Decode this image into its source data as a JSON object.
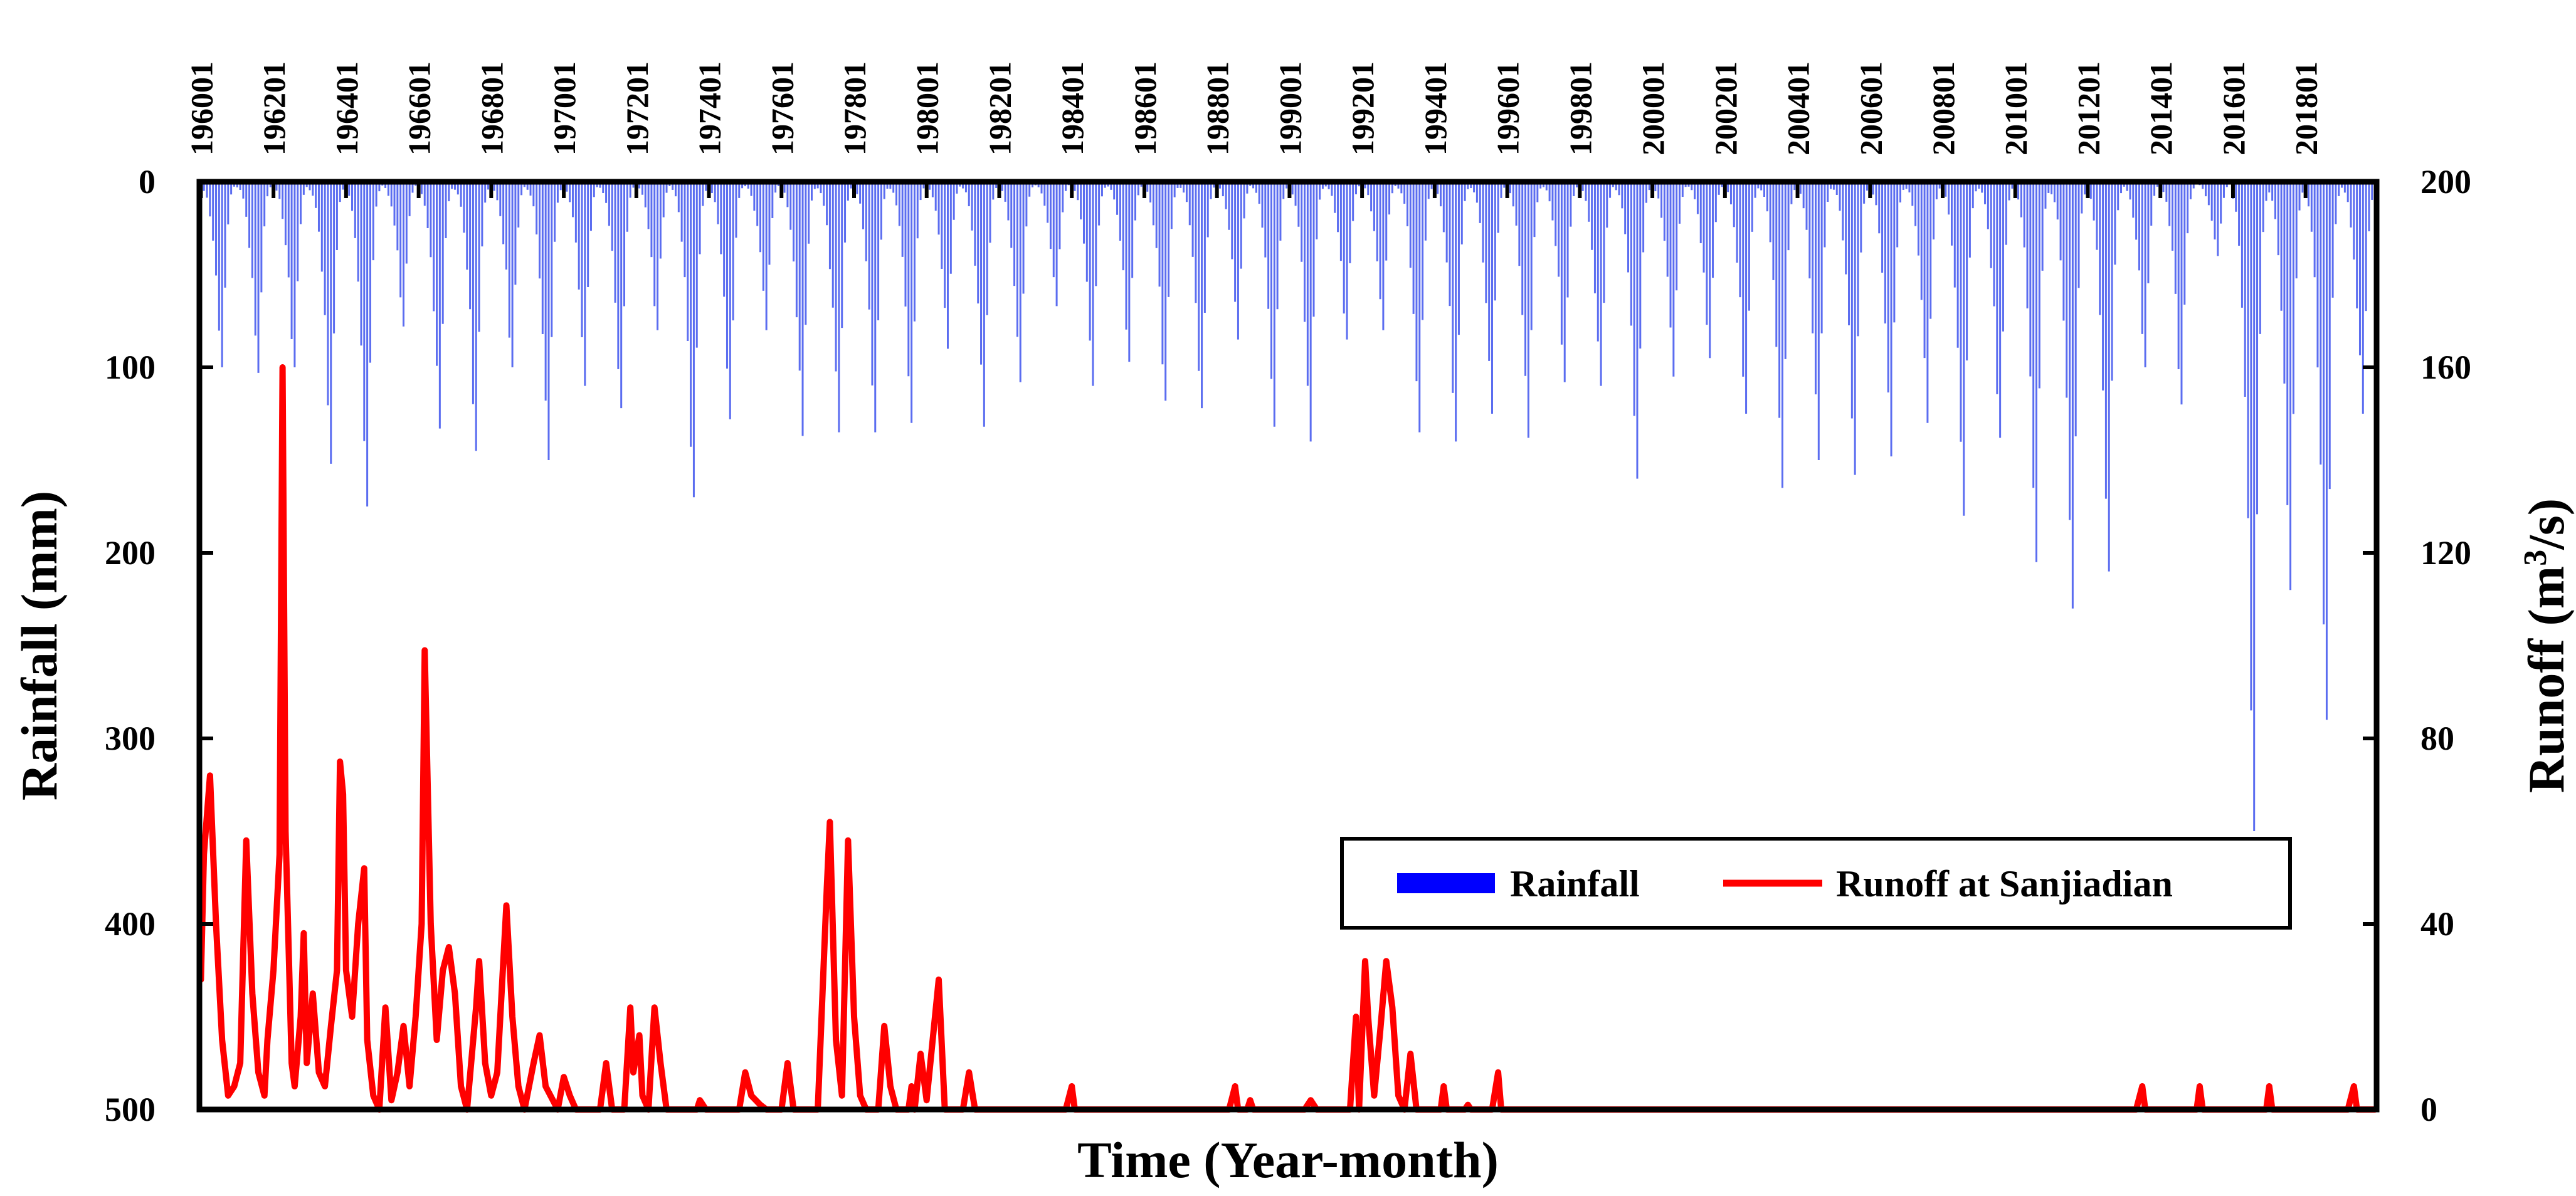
{
  "chart_data": {
    "type": "bar+line",
    "title": "",
    "xlabel": "Time (Year-month)",
    "ylabel_left": "Rainfall (mm)",
    "ylabel_right": "Runoff (m3/s)",
    "ylabel_right_parts": [
      "Runoff (m",
      "3",
      "/s)"
    ],
    "left_axis": {
      "range": [
        0,
        500
      ],
      "inverted": true,
      "ticks": [
        0,
        100,
        200,
        300,
        400,
        500
      ]
    },
    "right_axis": {
      "range": [
        0,
        200
      ],
      "ticks": [
        0,
        40,
        80,
        120,
        160,
        200
      ]
    },
    "x_tick_labels": [
      "196001",
      "196201",
      "196401",
      "196601",
      "196801",
      "197001",
      "197201",
      "197401",
      "197601",
      "197801",
      "198001",
      "198201",
      "198401",
      "198601",
      "198801",
      "199001",
      "199201",
      "199401",
      "199601",
      "199801",
      "200001",
      "200201",
      "200401",
      "200601",
      "200801",
      "201001",
      "201201",
      "201401",
      "201601",
      "201801"
    ],
    "time_range": {
      "start": "1960-01",
      "end": "2019-12",
      "months": 720
    },
    "series": [
      {
        "name": "Rainfall",
        "type": "bar",
        "color": "#5b6df0",
        "legend_color": "#0000ff",
        "axis": "left",
        "annual_peaks": [
          {
            "year": 1960,
            "value": 100
          },
          {
            "year": 1961,
            "value": 103
          },
          {
            "year": 1962,
            "value": 100
          },
          {
            "year": 1963,
            "value": 152
          },
          {
            "year": 1964,
            "value": 175
          },
          {
            "year": 1965,
            "value": 78
          },
          {
            "year": 1966,
            "value": 133
          },
          {
            "year": 1967,
            "value": 145
          },
          {
            "year": 1968,
            "value": 100
          },
          {
            "year": 1969,
            "value": 150
          },
          {
            "year": 1970,
            "value": 110
          },
          {
            "year": 1971,
            "value": 122
          },
          {
            "year": 1972,
            "value": 80
          },
          {
            "year": 1973,
            "value": 170
          },
          {
            "year": 1974,
            "value": 128
          },
          {
            "year": 1975,
            "value": 80
          },
          {
            "year": 1976,
            "value": 137
          },
          {
            "year": 1977,
            "value": 135
          },
          {
            "year": 1978,
            "value": 135
          },
          {
            "year": 1979,
            "value": 130
          },
          {
            "year": 1980,
            "value": 90
          },
          {
            "year": 1981,
            "value": 132
          },
          {
            "year": 1982,
            "value": 108
          },
          {
            "year": 1983,
            "value": 67
          },
          {
            "year": 1984,
            "value": 110
          },
          {
            "year": 1985,
            "value": 97
          },
          {
            "year": 1986,
            "value": 118
          },
          {
            "year": 1987,
            "value": 122
          },
          {
            "year": 1988,
            "value": 85
          },
          {
            "year": 1989,
            "value": 132
          },
          {
            "year": 1990,
            "value": 140
          },
          {
            "year": 1991,
            "value": 85
          },
          {
            "year": 1992,
            "value": 80
          },
          {
            "year": 1993,
            "value": 135
          },
          {
            "year": 1994,
            "value": 140
          },
          {
            "year": 1995,
            "value": 125
          },
          {
            "year": 1996,
            "value": 138
          },
          {
            "year": 1997,
            "value": 108
          },
          {
            "year": 1998,
            "value": 110
          },
          {
            "year": 1999,
            "value": 160
          },
          {
            "year": 2000,
            "value": 105
          },
          {
            "year": 2001,
            "value": 95
          },
          {
            "year": 2002,
            "value": 125
          },
          {
            "year": 2003,
            "value": 165
          },
          {
            "year": 2004,
            "value": 150
          },
          {
            "year": 2005,
            "value": 158
          },
          {
            "year": 2006,
            "value": 148
          },
          {
            "year": 2007,
            "value": 130
          },
          {
            "year": 2008,
            "value": 180
          },
          {
            "year": 2009,
            "value": 138
          },
          {
            "year": 2010,
            "value": 205
          },
          {
            "year": 2011,
            "value": 230
          },
          {
            "year": 2012,
            "value": 210
          },
          {
            "year": 2013,
            "value": 100
          },
          {
            "year": 2014,
            "value": 120
          },
          {
            "year": 2015,
            "value": 40
          },
          {
            "year": 2016,
            "value": 350
          },
          {
            "year": 2017,
            "value": 220
          },
          {
            "year": 2018,
            "value": 290
          },
          {
            "year": 2019,
            "value": 125
          }
        ]
      },
      {
        "name": "Runoff at Sanjiadian",
        "type": "line",
        "color": "#ff0000",
        "axis": "right",
        "points": [
          {
            "t": 0,
            "v": 28
          },
          {
            "t": 1,
            "v": 55
          },
          {
            "t": 3,
            "v": 72
          },
          {
            "t": 5,
            "v": 40
          },
          {
            "t": 7,
            "v": 15
          },
          {
            "t": 9,
            "v": 3
          },
          {
            "t": 11,
            "v": 5
          },
          {
            "t": 13,
            "v": 10
          },
          {
            "t": 15,
            "v": 58
          },
          {
            "t": 17,
            "v": 25
          },
          {
            "t": 19,
            "v": 8
          },
          {
            "t": 21,
            "v": 3
          },
          {
            "t": 22,
            "v": 15
          },
          {
            "t": 24,
            "v": 30
          },
          {
            "t": 26,
            "v": 55
          },
          {
            "t": 27,
            "v": 160
          },
          {
            "t": 28,
            "v": 60
          },
          {
            "t": 30,
            "v": 10
          },
          {
            "t": 31,
            "v": 5
          },
          {
            "t": 33,
            "v": 20
          },
          {
            "t": 34,
            "v": 38
          },
          {
            "t": 35,
            "v": 10
          },
          {
            "t": 37,
            "v": 25
          },
          {
            "t": 39,
            "v": 8
          },
          {
            "t": 41,
            "v": 5
          },
          {
            "t": 43,
            "v": 18
          },
          {
            "t": 45,
            "v": 30
          },
          {
            "t": 46,
            "v": 75
          },
          {
            "t": 47,
            "v": 68
          },
          {
            "t": 48,
            "v": 30
          },
          {
            "t": 50,
            "v": 20
          },
          {
            "t": 52,
            "v": 40
          },
          {
            "t": 54,
            "v": 52
          },
          {
            "t": 55,
            "v": 15
          },
          {
            "t": 57,
            "v": 3
          },
          {
            "t": 59,
            "v": 0
          },
          {
            "t": 61,
            "v": 22
          },
          {
            "t": 63,
            "v": 2
          },
          {
            "t": 65,
            "v": 8
          },
          {
            "t": 67,
            "v": 18
          },
          {
            "t": 69,
            "v": 5
          },
          {
            "t": 71,
            "v": 20
          },
          {
            "t": 73,
            "v": 40
          },
          {
            "t": 74,
            "v": 99
          },
          {
            "t": 76,
            "v": 40
          },
          {
            "t": 78,
            "v": 15
          },
          {
            "t": 80,
            "v": 30
          },
          {
            "t": 82,
            "v": 35
          },
          {
            "t": 84,
            "v": 25
          },
          {
            "t": 86,
            "v": 5
          },
          {
            "t": 88,
            "v": 0
          },
          {
            "t": 91,
            "v": 22
          },
          {
            "t": 92,
            "v": 32
          },
          {
            "t": 94,
            "v": 10
          },
          {
            "t": 96,
            "v": 3
          },
          {
            "t": 98,
            "v": 8
          },
          {
            "t": 101,
            "v": 44
          },
          {
            "t": 103,
            "v": 20
          },
          {
            "t": 105,
            "v": 5
          },
          {
            "t": 107,
            "v": 0
          },
          {
            "t": 110,
            "v": 10
          },
          {
            "t": 112,
            "v": 16
          },
          {
            "t": 114,
            "v": 5
          },
          {
            "t": 118,
            "v": 0
          },
          {
            "t": 120,
            "v": 7
          },
          {
            "t": 122,
            "v": 3
          },
          {
            "t": 124,
            "v": 0
          },
          {
            "t": 132,
            "v": 0
          },
          {
            "t": 134,
            "v": 10
          },
          {
            "t": 136,
            "v": 0
          },
          {
            "t": 140,
            "v": 0
          },
          {
            "t": 142,
            "v": 22
          },
          {
            "t": 143,
            "v": 8
          },
          {
            "t": 145,
            "v": 16
          },
          {
            "t": 146,
            "v": 3
          },
          {
            "t": 148,
            "v": 0
          },
          {
            "t": 150,
            "v": 22
          },
          {
            "t": 152,
            "v": 10
          },
          {
            "t": 154,
            "v": 0
          },
          {
            "t": 164,
            "v": 0
          },
          {
            "t": 165,
            "v": 2
          },
          {
            "t": 167,
            "v": 0
          },
          {
            "t": 178,
            "v": 0
          },
          {
            "t": 180,
            "v": 8
          },
          {
            "t": 182,
            "v": 3
          },
          {
            "t": 185,
            "v": 1
          },
          {
            "t": 187,
            "v": 0
          },
          {
            "t": 192,
            "v": 0
          },
          {
            "t": 194,
            "v": 10
          },
          {
            "t": 196,
            "v": 0
          },
          {
            "t": 204,
            "v": 0
          },
          {
            "t": 207,
            "v": 48
          },
          {
            "t": 208,
            "v": 62
          },
          {
            "t": 210,
            "v": 15
          },
          {
            "t": 212,
            "v": 3
          },
          {
            "t": 214,
            "v": 58
          },
          {
            "t": 216,
            "v": 20
          },
          {
            "t": 218,
            "v": 3
          },
          {
            "t": 220,
            "v": 0
          },
          {
            "t": 224,
            "v": 0
          },
          {
            "t": 226,
            "v": 18
          },
          {
            "t": 228,
            "v": 5
          },
          {
            "t": 230,
            "v": 0
          },
          {
            "t": 234,
            "v": 0
          },
          {
            "t": 235,
            "v": 5
          },
          {
            "t": 236,
            "v": 0
          },
          {
            "t": 238,
            "v": 12
          },
          {
            "t": 240,
            "v": 2
          },
          {
            "t": 244,
            "v": 28
          },
          {
            "t": 246,
            "v": 0
          },
          {
            "t": 252,
            "v": 0
          },
          {
            "t": 254,
            "v": 8
          },
          {
            "t": 256,
            "v": 0
          },
          {
            "t": 261,
            "v": 0
          },
          {
            "t": 272,
            "v": 0
          },
          {
            "t": 286,
            "v": 0
          },
          {
            "t": 288,
            "v": 5
          },
          {
            "t": 289,
            "v": 0
          },
          {
            "t": 340,
            "v": 0
          },
          {
            "t": 342,
            "v": 5
          },
          {
            "t": 343,
            "v": 0
          },
          {
            "t": 346,
            "v": 0
          },
          {
            "t": 347,
            "v": 2
          },
          {
            "t": 348,
            "v": 0
          },
          {
            "t": 365,
            "v": 0
          },
          {
            "t": 367,
            "v": 2
          },
          {
            "t": 369,
            "v": 0
          },
          {
            "t": 380,
            "v": 0
          },
          {
            "t": 382,
            "v": 20
          },
          {
            "t": 383,
            "v": 0
          },
          {
            "t": 385,
            "v": 32
          },
          {
            "t": 386,
            "v": 20
          },
          {
            "t": 388,
            "v": 3
          },
          {
            "t": 390,
            "v": 17
          },
          {
            "t": 392,
            "v": 32
          },
          {
            "t": 394,
            "v": 22
          },
          {
            "t": 396,
            "v": 3
          },
          {
            "t": 398,
            "v": 0
          },
          {
            "t": 400,
            "v": 12
          },
          {
            "t": 402,
            "v": 0
          },
          {
            "t": 410,
            "v": 0
          },
          {
            "t": 411,
            "v": 5
          },
          {
            "t": 412,
            "v": 0
          },
          {
            "t": 418,
            "v": 0
          },
          {
            "t": 419,
            "v": 1
          },
          {
            "t": 420,
            "v": 0
          },
          {
            "t": 427,
            "v": 0
          },
          {
            "t": 429,
            "v": 8
          },
          {
            "t": 430,
            "v": 0
          },
          {
            "t": 550,
            "v": 0
          },
          {
            "t": 640,
            "v": 0
          },
          {
            "t": 642,
            "v": 5
          },
          {
            "t": 643,
            "v": 0
          },
          {
            "t": 660,
            "v": 0
          },
          {
            "t": 661,
            "v": 5
          },
          {
            "t": 662,
            "v": 0
          },
          {
            "t": 683,
            "v": 0
          },
          {
            "t": 684,
            "v": 5
          },
          {
            "t": 685,
            "v": 0
          },
          {
            "t": 710,
            "v": 0
          },
          {
            "t": 712,
            "v": 5
          },
          {
            "t": 713,
            "v": 0
          },
          {
            "t": 719,
            "v": 0
          }
        ]
      }
    ],
    "legend": {
      "position": "bottom-right",
      "entries": [
        "Rainfall",
        "Runoff at Sanjiadian"
      ]
    }
  }
}
